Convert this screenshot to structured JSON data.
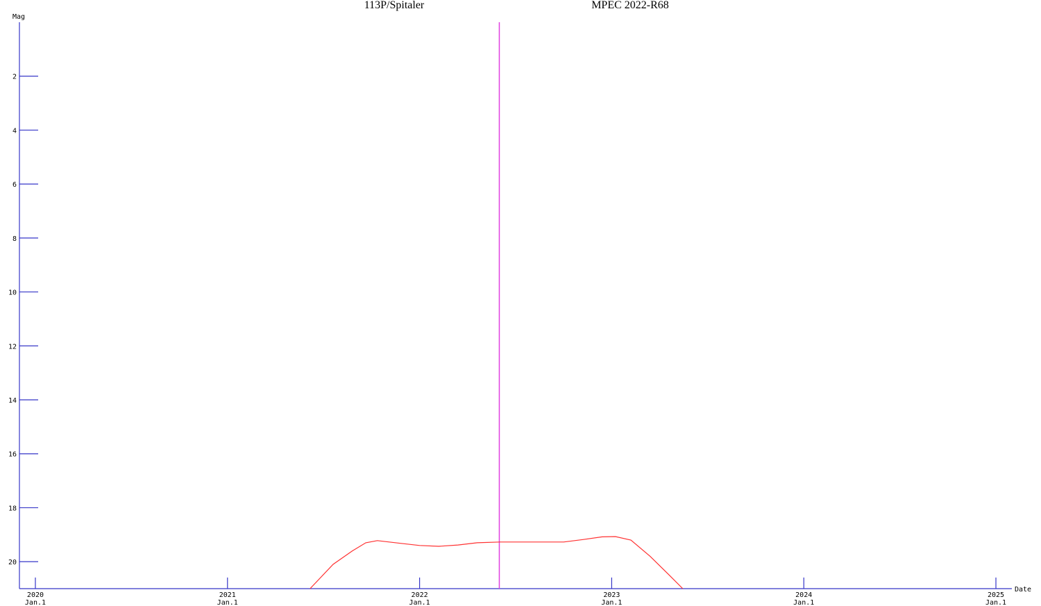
{
  "chart_data": {
    "type": "line",
    "titles": [
      "113P/Spitaler",
      "MPEC 2022-R68"
    ],
    "ylabel": "Mag",
    "xlabel": "Date",
    "x": [
      2021.43,
      2021.55,
      2021.65,
      2021.72,
      2021.78,
      2021.9,
      2022.0,
      2022.1,
      2022.2,
      2022.3,
      2022.42,
      2022.6,
      2022.75,
      2022.85,
      2022.95,
      2023.02,
      2023.1,
      2023.2,
      2023.3,
      2023.37
    ],
    "values": [
      21.0,
      20.1,
      19.6,
      19.3,
      19.22,
      19.32,
      19.4,
      19.43,
      19.38,
      19.3,
      19.27,
      19.27,
      19.27,
      19.18,
      19.08,
      19.07,
      19.2,
      19.8,
      20.5,
      21.0
    ],
    "color": "#ff3030",
    "marker_x": 2022.415,
    "marker_color": "#e040e0",
    "axis_color": "#3535c8",
    "xlim": [
      2019.917,
      2025.083
    ],
    "ylim": [
      0,
      21
    ],
    "y_inverted": true,
    "yticks": [
      2,
      4,
      6,
      8,
      10,
      12,
      14,
      16,
      18,
      20
    ],
    "xticks": [
      2020,
      2021,
      2022,
      2023,
      2024,
      2025
    ],
    "xtick_sublabels": [
      "Jan.1",
      "Jan.1",
      "Jan.1",
      "Jan.1",
      "Jan.1",
      "Jan.1"
    ]
  }
}
